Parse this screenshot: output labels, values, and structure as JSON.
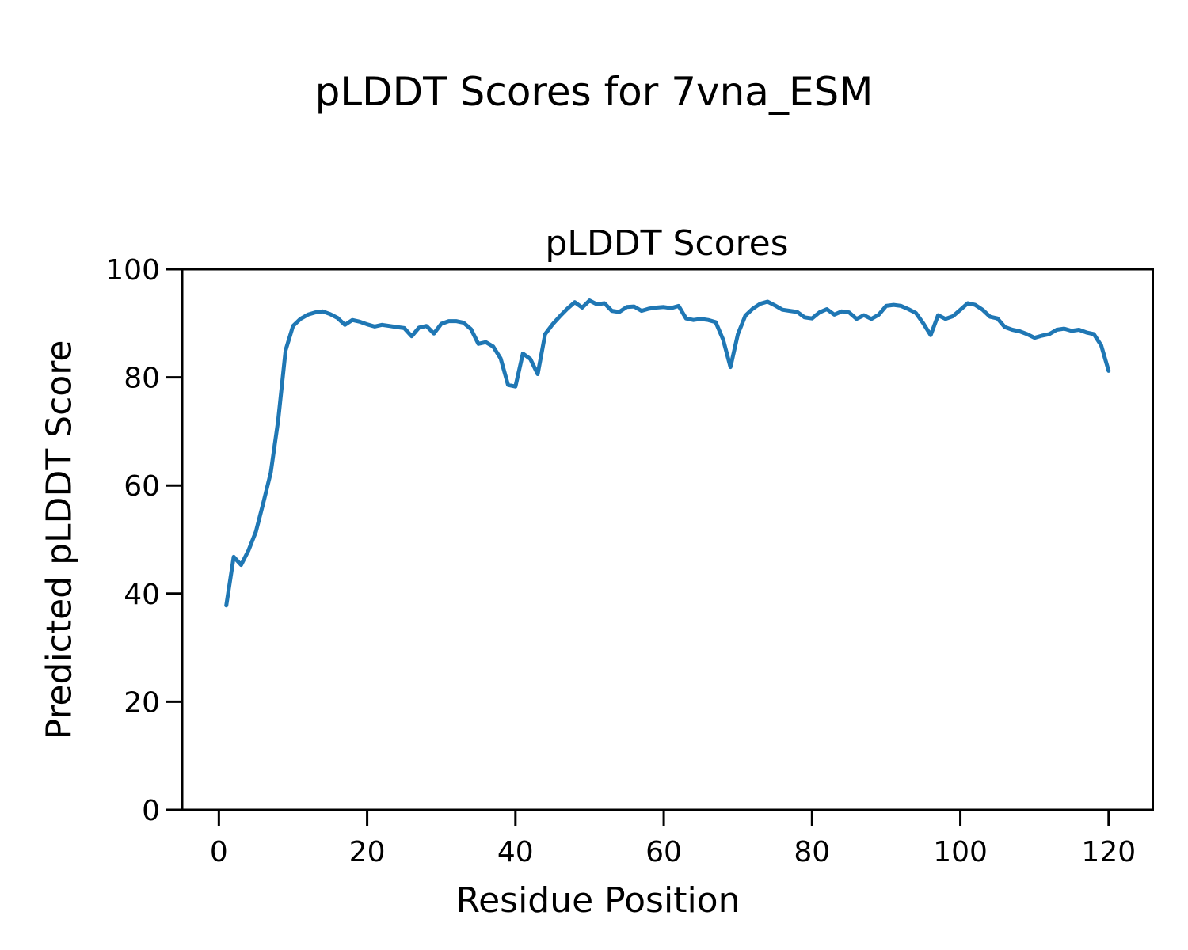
{
  "figure": {
    "title": "pLDDT Scores for 7vna_ESM",
    "background_color": "#ffffff"
  },
  "chart_data": {
    "type": "line",
    "title": "pLDDT Scores",
    "xlabel": "Residue Position",
    "ylabel": "Predicted pLDDT Score",
    "xlim": [
      -4.95,
      125.95
    ],
    "ylim": [
      0,
      100
    ],
    "xticks": [
      0,
      20,
      40,
      60,
      80,
      100,
      120
    ],
    "yticks": [
      0,
      20,
      40,
      60,
      80,
      100
    ],
    "grid": false,
    "legend": "none",
    "line_color": "#1f77b4",
    "line_width": 5,
    "axis_color": "#000000",
    "series": [
      {
        "name": "pLDDT",
        "x": [
          1,
          2,
          3,
          4,
          5,
          6,
          7,
          8,
          9,
          10,
          11,
          12,
          13,
          14,
          15,
          16,
          17,
          18,
          19,
          20,
          21,
          22,
          23,
          24,
          25,
          26,
          27,
          28,
          29,
          30,
          31,
          32,
          33,
          34,
          35,
          36,
          37,
          38,
          39,
          40,
          41,
          42,
          43,
          44,
          45,
          46,
          47,
          48,
          49,
          50,
          51,
          52,
          53,
          54,
          55,
          56,
          57,
          58,
          59,
          60,
          61,
          62,
          63,
          64,
          65,
          66,
          67,
          68,
          69,
          70,
          71,
          72,
          73,
          74,
          75,
          76,
          77,
          78,
          79,
          80,
          81,
          82,
          83,
          84,
          85,
          86,
          87,
          88,
          89,
          90,
          91,
          92,
          93,
          94,
          95,
          96,
          97,
          98,
          99,
          100,
          101,
          102,
          103,
          104,
          105,
          106,
          107,
          108,
          109,
          110,
          111,
          112,
          113,
          114,
          115,
          116,
          117,
          118,
          119,
          120
        ],
        "values": [
          37.8,
          46.8,
          45.3,
          48.0,
          51.5,
          56.8,
          62.4,
          72.0,
          85.0,
          89.5,
          90.8,
          91.6,
          92.0,
          92.2,
          91.7,
          91.0,
          89.7,
          90.6,
          90.3,
          89.8,
          89.4,
          89.7,
          89.5,
          89.3,
          89.1,
          87.6,
          89.2,
          89.5,
          88.1,
          89.9,
          90.4,
          90.4,
          90.1,
          88.9,
          86.2,
          86.5,
          85.7,
          83.5,
          78.6,
          78.3,
          84.4,
          83.4,
          80.6,
          88.0,
          89.8,
          91.3,
          92.7,
          93.9,
          92.9,
          94.2,
          93.5,
          93.7,
          92.3,
          92.1,
          93.0,
          93.1,
          92.3,
          92.7,
          92.9,
          93.0,
          92.8,
          93.2,
          90.9,
          90.6,
          90.8,
          90.6,
          90.2,
          87.0,
          81.9,
          88.0,
          91.4,
          92.7,
          93.6,
          94.0,
          93.3,
          92.5,
          92.3,
          92.1,
          91.1,
          90.9,
          92.0,
          92.6,
          91.6,
          92.2,
          92.0,
          90.8,
          91.5,
          90.8,
          91.6,
          93.2,
          93.4,
          93.2,
          92.6,
          91.9,
          90.0,
          87.8,
          91.5,
          90.8,
          91.3,
          92.5,
          93.7,
          93.4,
          92.5,
          91.2,
          90.9,
          89.3,
          88.8,
          88.5,
          88.0,
          87.3,
          87.7,
          88.0,
          88.8,
          89.0,
          88.6,
          88.8,
          88.3,
          88.0,
          85.9,
          81.2
        ]
      }
    ]
  }
}
